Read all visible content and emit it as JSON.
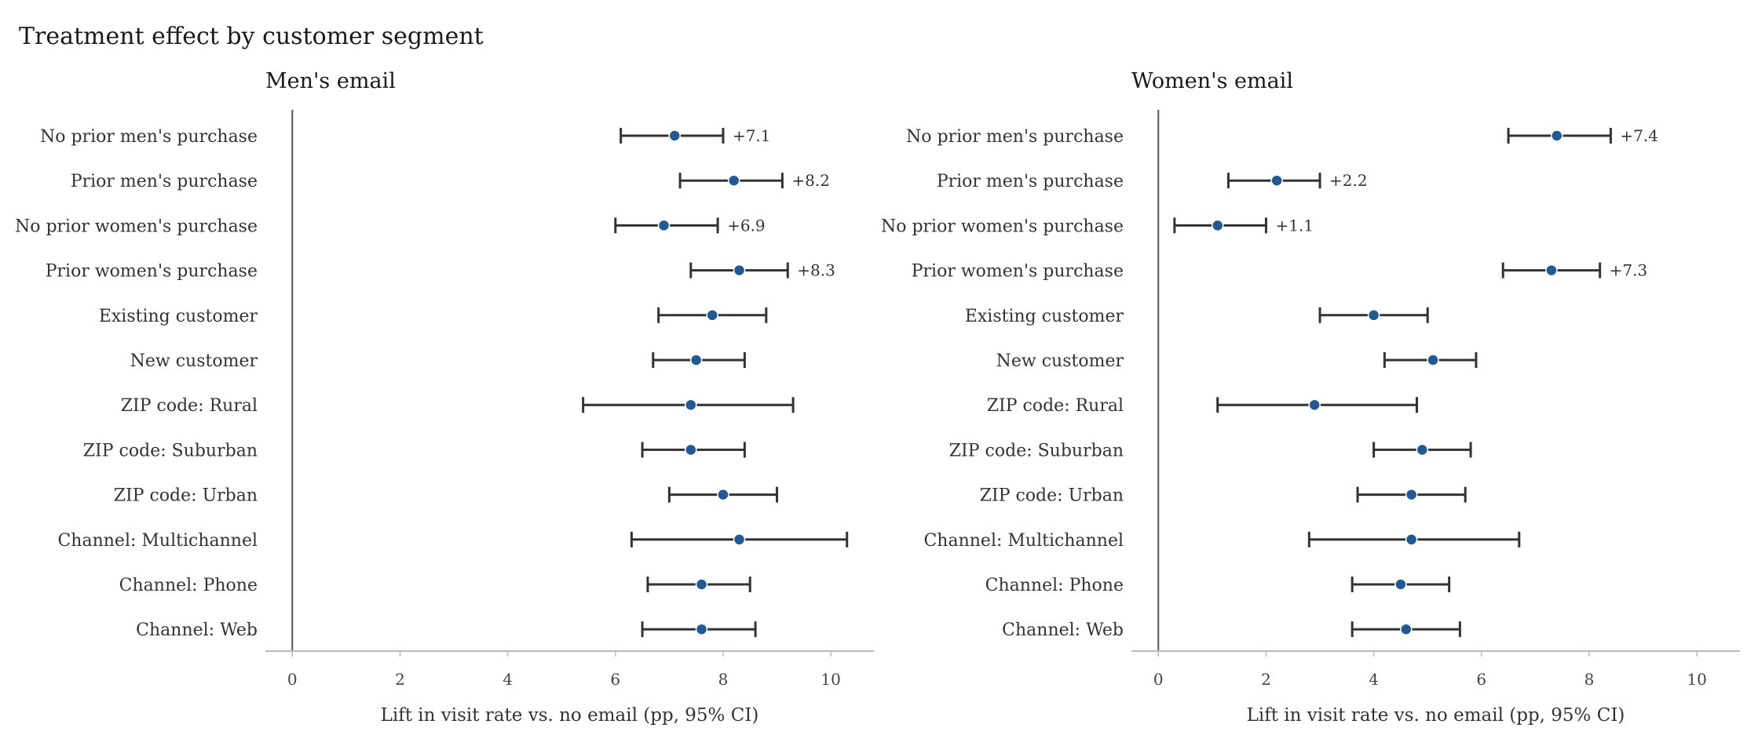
{
  "figure_title": "Treatment effect by customer segment",
  "colors": {
    "point": "#1f5a96",
    "whisker": "#333333",
    "axis": "#bbbbbb",
    "zero_line": "#555555"
  },
  "chart_data": [
    {
      "type": "scatter",
      "title": "Men's email",
      "xlabel": "Lift in visit rate vs. no email (pp, 95% CI)",
      "xlim": [
        -0.5,
        10.8
      ],
      "xticks": [
        0,
        2,
        4,
        6,
        8,
        10
      ],
      "grid": false,
      "categories": [
        "No prior men's purchase",
        "Prior men's purchase",
        "No prior women's purchase",
        "Prior women's purchase",
        "Existing customer",
        "New customer",
        "ZIP code: Rural",
        "ZIP code: Suburban",
        "ZIP code: Urban",
        "Channel: Multichannel",
        "Channel: Phone",
        "Channel: Web"
      ],
      "values": [
        7.1,
        8.2,
        6.9,
        8.3,
        7.8,
        7.5,
        7.4,
        7.4,
        8.0,
        8.3,
        7.6,
        7.6
      ],
      "ci_low": [
        6.1,
        7.2,
        6.0,
        7.4,
        6.8,
        6.7,
        5.4,
        6.5,
        7.0,
        6.3,
        6.6,
        6.5
      ],
      "ci_high": [
        8.0,
        9.1,
        7.9,
        9.2,
        8.8,
        8.4,
        9.3,
        8.4,
        9.0,
        10.3,
        8.5,
        8.6
      ],
      "labels": [
        "+7.1",
        "+8.2",
        "+6.9",
        "+8.3",
        "",
        "",
        "",
        "",
        "",
        "",
        "",
        ""
      ]
    },
    {
      "type": "scatter",
      "title": "Women's email",
      "xlabel": "Lift in visit rate vs. no email (pp, 95% CI)",
      "xlim": [
        -0.5,
        10.8
      ],
      "xticks": [
        0,
        2,
        4,
        6,
        8,
        10
      ],
      "grid": false,
      "categories": [
        "No prior men's purchase",
        "Prior men's purchase",
        "No prior women's purchase",
        "Prior women's purchase",
        "Existing customer",
        "New customer",
        "ZIP code: Rural",
        "ZIP code: Suburban",
        "ZIP code: Urban",
        "Channel: Multichannel",
        "Channel: Phone",
        "Channel: Web"
      ],
      "values": [
        7.4,
        2.2,
        1.1,
        7.3,
        4.0,
        5.1,
        2.9,
        4.9,
        4.7,
        4.7,
        4.5,
        4.6
      ],
      "ci_low": [
        6.5,
        1.3,
        0.3,
        6.4,
        3.0,
        4.2,
        1.1,
        4.0,
        3.7,
        2.8,
        3.6,
        3.6
      ],
      "ci_high": [
        8.4,
        3.0,
        2.0,
        8.2,
        5.0,
        5.9,
        4.8,
        5.8,
        5.7,
        6.7,
        5.4,
        5.6
      ],
      "labels": [
        "+7.4",
        "+2.2",
        "+1.1",
        "+7.3",
        "",
        "",
        "",
        "",
        "",
        "",
        "",
        ""
      ]
    }
  ]
}
